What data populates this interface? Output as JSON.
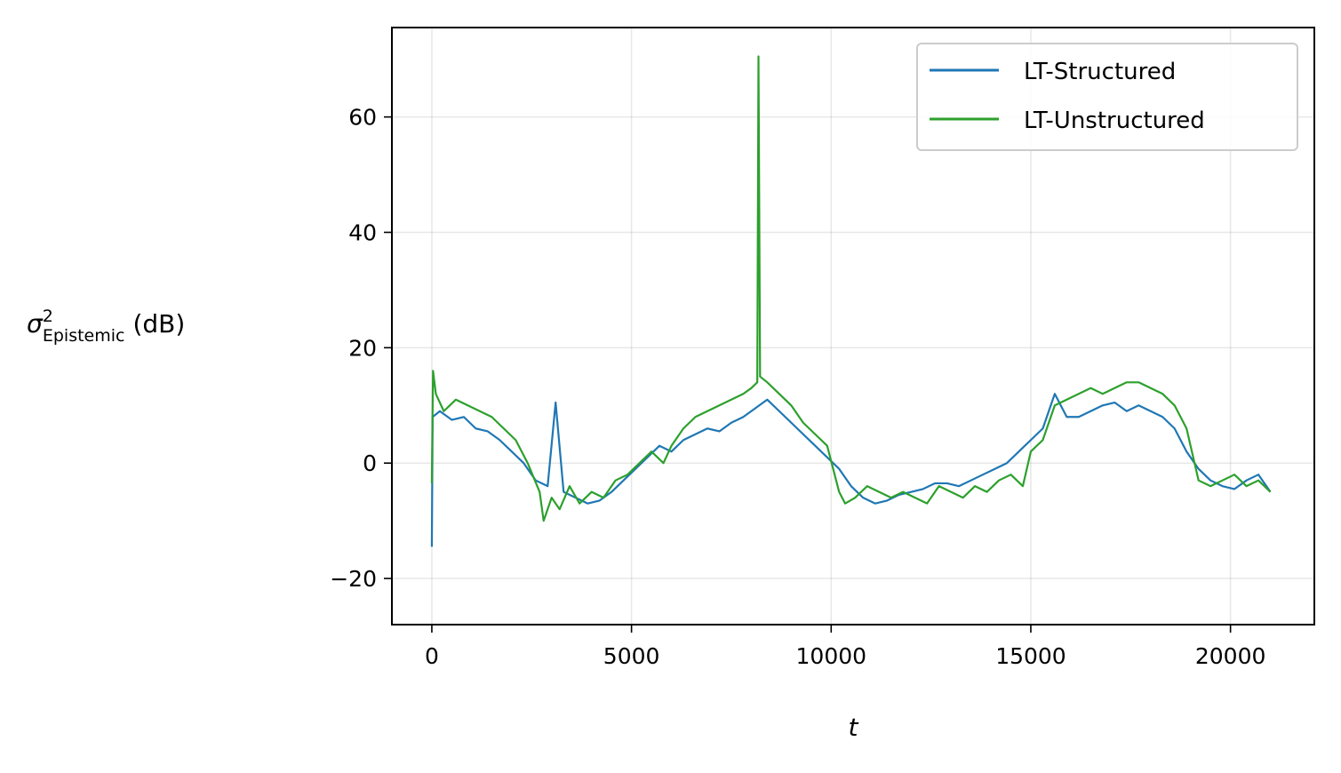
{
  "chart_data": {
    "type": "line",
    "xlabel": "t",
    "ylabel": {
      "symbol": "σ",
      "superscript": "2",
      "subscript": "Epistemic",
      "unit": "(dB)"
    },
    "xlim": [
      -1000,
      22100
    ],
    "ylim": [
      -28,
      75.5
    ],
    "xticks": [
      0,
      5000,
      10000,
      15000,
      20000
    ],
    "yticks": [
      -20,
      0,
      20,
      40,
      60
    ],
    "grid": true,
    "legend_position": "top-right",
    "series": [
      {
        "name": "LT-Structured",
        "color": "#1f77b4",
        "x": [
          0,
          20,
          200,
          500,
          800,
          1100,
          1400,
          1700,
          2000,
          2300,
          2600,
          2900,
          3100,
          3300,
          3600,
          3900,
          4200,
          4500,
          4800,
          5100,
          5400,
          5700,
          6000,
          6300,
          6600,
          6900,
          7200,
          7500,
          7800,
          8100,
          8400,
          8700,
          9000,
          9300,
          9600,
          9900,
          10200,
          10500,
          10800,
          11100,
          11400,
          11700,
          12000,
          12300,
          12600,
          12900,
          13200,
          13500,
          13800,
          14100,
          14400,
          14700,
          15000,
          15300,
          15600,
          15900,
          16200,
          16500,
          16800,
          17100,
          17400,
          17700,
          18000,
          18300,
          18600,
          18900,
          19200,
          19500,
          19800,
          20100,
          20400,
          20700,
          21000
        ],
        "y": [
          -14.5,
          8,
          9,
          7.5,
          8,
          6,
          5.5,
          4,
          2,
          0,
          -3,
          -4,
          10.5,
          -5,
          -6,
          -7,
          -6.5,
          -5,
          -3,
          -1,
          1,
          3,
          2,
          4,
          5,
          6,
          5.5,
          7,
          8,
          9.5,
          11,
          9,
          7,
          5,
          3,
          1,
          -1,
          -4,
          -6,
          -7,
          -6.5,
          -5.5,
          -5,
          -4.5,
          -3.5,
          -3.5,
          -4,
          -3,
          -2,
          -1,
          0,
          2,
          4,
          6,
          12,
          8,
          8,
          9,
          10,
          10.5,
          9,
          10,
          9,
          8,
          6,
          2,
          -1,
          -3,
          -4,
          -4.5,
          -3,
          -2,
          -5
        ]
      },
      {
        "name": "LT-Unstructured",
        "color": "#2ca02c",
        "x": [
          0,
          30,
          100,
          300,
          600,
          900,
          1200,
          1500,
          1800,
          2100,
          2400,
          2700,
          2800,
          3000,
          3200,
          3450,
          3700,
          4000,
          4300,
          4600,
          4900,
          5200,
          5500,
          5800,
          6000,
          6300,
          6600,
          6900,
          7200,
          7500,
          7800,
          8000,
          8150,
          8180,
          8220,
          8400,
          8700,
          9000,
          9300,
          9600,
          9900,
          10200,
          10350,
          10600,
          10900,
          11200,
          11500,
          11800,
          12100,
          12400,
          12700,
          13000,
          13300,
          13600,
          13900,
          14200,
          14500,
          14800,
          15000,
          15300,
          15600,
          15900,
          16200,
          16500,
          16800,
          17100,
          17400,
          17700,
          18000,
          18300,
          18600,
          18900,
          19200,
          19500,
          19800,
          20100,
          20400,
          20700,
          21000
        ],
        "y": [
          -3.5,
          16,
          12,
          9,
          11,
          10,
          9,
          8,
          6,
          4,
          0,
          -5,
          -10,
          -6,
          -8,
          -4,
          -7,
          -5,
          -6,
          -3,
          -2,
          0,
          2,
          0,
          3,
          6,
          8,
          9,
          10,
          11,
          12,
          13,
          14,
          70.5,
          15,
          14,
          12,
          10,
          7,
          5,
          3,
          -5,
          -7,
          -6,
          -4,
          -5,
          -6,
          -5,
          -6,
          -7,
          -4,
          -5,
          -6,
          -4,
          -5,
          -3,
          -2,
          -4,
          2,
          4,
          10,
          11,
          12,
          13,
          12,
          13,
          14,
          14,
          13,
          12,
          10,
          6,
          -3,
          -4,
          -3,
          -2,
          -4,
          -3,
          -5
        ]
      }
    ]
  }
}
